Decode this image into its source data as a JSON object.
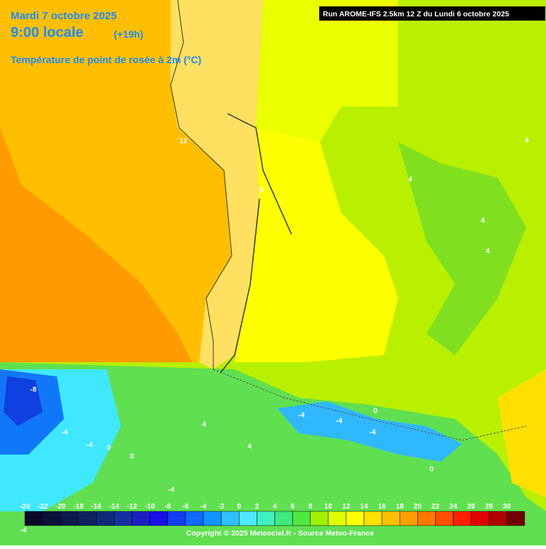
{
  "header": {
    "date": "Mardi 7 octobre 2025",
    "time": "9:00 locale",
    "lead": "(+19h)",
    "parameter": "Température de point de rosée à 2m (°C)",
    "run": "Run AROME-IFS 2.5km 12 Z du Lundi 6 octobre 2025"
  },
  "legend": {
    "items": [
      {
        "label": "-24",
        "color": "#0a0a28"
      },
      {
        "label": "-22",
        "color": "#0b1238"
      },
      {
        "label": "-20",
        "color": "#0c1a4a"
      },
      {
        "label": "-18",
        "color": "#0e2460"
      },
      {
        "label": "-16",
        "color": "#102c78"
      },
      {
        "label": "-14",
        "color": "#1430a0"
      },
      {
        "label": "-12",
        "color": "#1a20c0"
      },
      {
        "label": "-10",
        "color": "#1a10e8"
      },
      {
        "label": "-8",
        "color": "#1040f0"
      },
      {
        "label": "-6",
        "color": "#1068f8"
      },
      {
        "label": "-4",
        "color": "#1094ff"
      },
      {
        "label": "-2",
        "color": "#30c0ff"
      },
      {
        "label": "0",
        "color": "#50e8ff"
      },
      {
        "label": "2",
        "color": "#40f0c0"
      },
      {
        "label": "4",
        "color": "#40e880"
      },
      {
        "label": "6",
        "color": "#50e840"
      },
      {
        "label": "8",
        "color": "#a0f000"
      },
      {
        "label": "10",
        "color": "#e0ff00"
      },
      {
        "label": "12",
        "color": "#ffff00"
      },
      {
        "label": "14",
        "color": "#ffe000"
      },
      {
        "label": "16",
        "color": "#ffc000"
      },
      {
        "label": "18",
        "color": "#ffa000"
      },
      {
        "label": "20",
        "color": "#ff7800"
      },
      {
        "label": "22",
        "color": "#ff5000"
      },
      {
        "label": "24",
        "color": "#ff2000"
      },
      {
        "label": "26",
        "color": "#e00000"
      },
      {
        "label": "28",
        "color": "#b00000"
      },
      {
        "label": "30",
        "color": "#700000"
      }
    ]
  },
  "contour_labels": [
    "12",
    "8",
    "4",
    "4",
    "4",
    "4",
    "-8",
    "-4",
    "-4",
    "0",
    "0",
    "4",
    "4",
    "-4",
    "-4",
    "-4",
    "0",
    "-4",
    "0",
    "-4"
  ],
  "footer": "Copyright © 2025 Meteociel.fr - Source Meteo-France"
}
